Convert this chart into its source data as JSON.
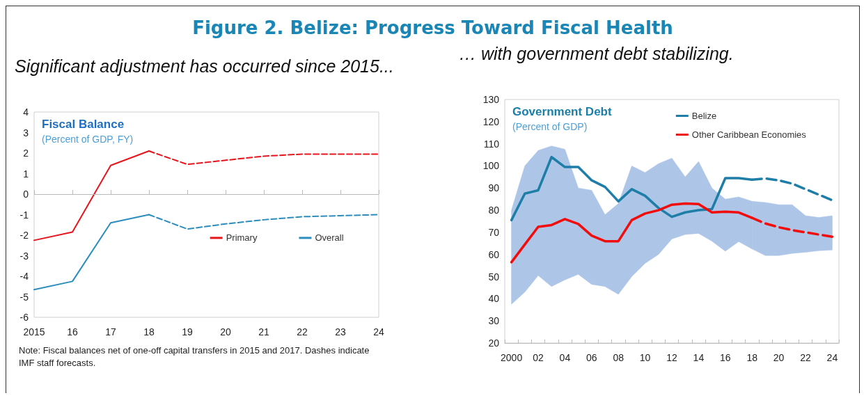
{
  "chart_data": [
    {
      "type": "line",
      "title": "Fiscal Balance",
      "subtitle": "(Percent of GDP, FY)",
      "annotations": [
        "Figure 2. Belize: Progress Toward Fiscal Health",
        "Significant adjustment has occurred since 2015...",
        "Note: Fiscal balances net of one-off capital transfers in 2015 and 2017. Dashes indicate IMF staff forecasts."
      ],
      "categories": [
        "2015",
        "16",
        "17",
        "18",
        "19",
        "20",
        "21",
        "22",
        "23",
        "24"
      ],
      "ylim": [
        -6,
        4
      ],
      "yticks": [
        -6,
        -5,
        -4,
        -3,
        -2,
        -1,
        0,
        1,
        2,
        3,
        4
      ],
      "grid": false,
      "legend": "center right",
      "marker": "none",
      "ref_lines": [
        {
          "axis": "y",
          "value": 0,
          "color": "#bbbbbb"
        }
      ],
      "series": [
        {
          "name": "Primary",
          "color": "#e8141b",
          "line_style": "solid",
          "values": [
            -2.25,
            -1.85,
            1.4,
            2.1,
            null,
            null,
            null,
            null,
            null,
            null
          ]
        },
        {
          "color": "#e8141b",
          "line_style": "dashed",
          "values": [
            null,
            null,
            null,
            2.1,
            1.45,
            1.65,
            1.85,
            1.95,
            1.95,
            1.95
          ]
        },
        {
          "name": "Overall",
          "color": "#2b8cbe",
          "line_style": "solid",
          "values": [
            -4.65,
            -4.25,
            -1.4,
            -1.0,
            null,
            null,
            null,
            null,
            null,
            null
          ]
        },
        {
          "color": "#2b8cbe",
          "line_style": "dashed",
          "values": [
            null,
            null,
            null,
            -1.0,
            -1.7,
            -1.45,
            -1.25,
            -1.1,
            -1.05,
            -1.0
          ]
        }
      ]
    },
    {
      "type": "line",
      "title": "Government Debt",
      "subtitle": "(Percent of GDP)",
      "annotations": [
        "… with government debt stabilizing."
      ],
      "categories": [
        "2000",
        null,
        "02",
        null,
        "04",
        null,
        "06",
        null,
        "08",
        null,
        "10",
        null,
        "12",
        null,
        "14",
        null,
        "16",
        null,
        "18",
        null,
        "20",
        null,
        "22",
        null,
        "24"
      ],
      "ylim": [
        20,
        130
      ],
      "yticks": [
        20,
        30,
        40,
        50,
        60,
        70,
        80,
        90,
        100,
        110,
        120,
        130
      ],
      "grid": false,
      "legend": "top right",
      "marker": "none",
      "series": [
        {
          "name": "Belize",
          "color": "#1e7ea8",
          "line_style": "solid",
          "values": [
            75.5,
            87.5,
            89,
            104,
            99.5,
            99.5,
            93.5,
            90.5,
            84,
            89.5,
            86.5,
            81,
            77,
            79,
            80,
            80.5,
            94.5,
            94.5,
            93.8,
            null,
            null,
            null,
            null,
            null,
            null
          ]
        },
        {
          "color": "#1e7ea8",
          "line_style": "dashed",
          "values": [
            null,
            null,
            null,
            null,
            null,
            null,
            null,
            null,
            null,
            null,
            null,
            null,
            null,
            null,
            null,
            null,
            null,
            null,
            93.8,
            94.3,
            93.5,
            92,
            89.5,
            87,
            84.5
          ]
        },
        {
          "name": "Other Caribbean Economies",
          "color": "#f20d0d",
          "line_style": "solid",
          "values": [
            56.5,
            64.5,
            72.5,
            73.3,
            76,
            73.8,
            68.5,
            66,
            66,
            75.5,
            78.5,
            80,
            82.5,
            83,
            82.8,
            79,
            79.3,
            79,
            76.5,
            null,
            null,
            null,
            null,
            null,
            null
          ],
          "lower": [
            37.5,
            43,
            50.5,
            45.5,
            48.5,
            51,
            46.5,
            45.5,
            42,
            50,
            56,
            60,
            67,
            69,
            69.5,
            66,
            61.5,
            65.8,
            62.5,
            null,
            null,
            null,
            null,
            null,
            null
          ],
          "upper": [
            80,
            100,
            107,
            109,
            107.5,
            90,
            89,
            78,
            83,
            100,
            97,
            101,
            103.5,
            95,
            102,
            90,
            85,
            86,
            84,
            null,
            null,
            null,
            null,
            null,
            null
          ]
        },
        {
          "color": "#f20d0d",
          "line_style": "dashed",
          "values": [
            null,
            null,
            null,
            null,
            null,
            null,
            null,
            null,
            null,
            null,
            null,
            null,
            null,
            null,
            null,
            null,
            null,
            null,
            76.5,
            74,
            72.3,
            71,
            70,
            69,
            68
          ],
          "lower": [
            null,
            null,
            null,
            null,
            null,
            null,
            null,
            null,
            null,
            null,
            null,
            null,
            null,
            null,
            null,
            null,
            null,
            null,
            62.5,
            59.5,
            59.5,
            60.5,
            61,
            61.7,
            62
          ],
          "upper": [
            null,
            null,
            null,
            null,
            null,
            null,
            null,
            null,
            null,
            null,
            null,
            null,
            null,
            null,
            null,
            null,
            null,
            null,
            84,
            83.5,
            82.5,
            82.5,
            77.5,
            76.7,
            77.5
          ]
        }
      ]
    }
  ]
}
